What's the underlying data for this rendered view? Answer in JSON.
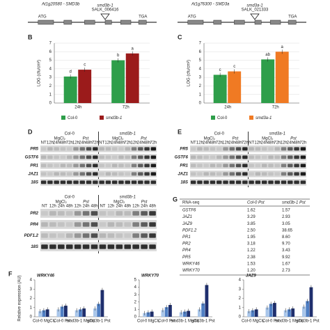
{
  "genes": [
    {
      "title": "At1g20580 - SMD3b",
      "start": "ATG",
      "stop": "TGA",
      "insertion": "smd3b-1",
      "line": "SALK_006416"
    },
    {
      "title": "At1g76300 - SMD3a",
      "start": "ATG",
      "stop": "TGA",
      "insertion": "smd3a-1",
      "line": "SALK_021333"
    }
  ],
  "chart_data": [
    {
      "type": "bar",
      "panel": "B",
      "ylabel": "LOG (cfu/cm²)",
      "categories": [
        "24h",
        "72h"
      ],
      "series": [
        {
          "name": "Col-0",
          "color": "#2e9e4a",
          "values": [
            3.1,
            5.0
          ],
          "annotations": [
            "d",
            "b"
          ]
        },
        {
          "name": "smd3b-1",
          "color": "#9b1b1b",
          "values": [
            3.9,
            5.8
          ],
          "annotations": [
            "c",
            "a"
          ]
        }
      ],
      "ylim": [
        0,
        7
      ],
      "yticks": [
        0,
        1,
        2,
        3,
        4,
        5,
        6,
        7
      ],
      "grid": true,
      "legend": "bottom"
    },
    {
      "type": "bar",
      "panel": "C",
      "ylabel": "LOG (cfu/cm²)",
      "categories": [
        "24h",
        "72h"
      ],
      "series": [
        {
          "name": "Col-0",
          "color": "#2e9e4a",
          "values": [
            3.3,
            5.1
          ],
          "annotations": [
            "c",
            "ab"
          ]
        },
        {
          "name": "smd3a-1",
          "color": "#f07a23",
          "values": [
            3.7,
            6.0
          ],
          "annotations": [
            "c",
            "a"
          ]
        }
      ],
      "ylim": [
        0,
        7
      ],
      "yticks": [
        0,
        1,
        2,
        3,
        4,
        5,
        6,
        7
      ],
      "grid": true,
      "legend": "bottom"
    },
    {
      "type": "bar",
      "panel": "F",
      "title": "WRKY46",
      "ylabel": "Relative expression (AU)",
      "categories": [
        "Col-0 MgCl₂",
        "Col-0 Pst",
        "smd3b-1 MgCl₂",
        "smd3b-1 Pst"
      ],
      "series": [
        {
          "color": "#a9c6ea",
          "values": [
            0.6,
            0.8,
            0.7,
            0.9
          ]
        },
        {
          "color": "#4f7fc4",
          "values": [
            0.7,
            1.1,
            0.8,
            1.4
          ]
        },
        {
          "color": "#1f2f6e",
          "values": [
            0.8,
            1.2,
            0.9,
            2.9
          ]
        }
      ],
      "ylim": [
        0,
        4
      ],
      "yticks": [
        0,
        1,
        2,
        3,
        4
      ],
      "grid": false
    },
    {
      "type": "bar",
      "title": "WRKY70",
      "categories": [
        "Col-0 MgCl₂",
        "Col-0 Pst",
        "smd3b-1 MgCl₂",
        "smd3b-1 Pst"
      ],
      "series": [
        {
          "color": "#a9c6ea",
          "values": [
            0.5,
            0.9,
            0.6,
            1.0
          ]
        },
        {
          "color": "#4f7fc4",
          "values": [
            0.6,
            1.3,
            0.7,
            1.8
          ]
        },
        {
          "color": "#1f2f6e",
          "values": [
            0.7,
            1.6,
            0.8,
            4.3
          ]
        }
      ],
      "ylim": [
        0,
        5
      ],
      "yticks": [
        0,
        1,
        2,
        3,
        4,
        5
      ],
      "grid": false
    },
    {
      "type": "bar",
      "title": "JAZ9",
      "categories": [
        "Col-0 MgCl₂",
        "Col-0 Pst",
        "smd3b-1 MgCl₂",
        "smd3b-1 Pst"
      ],
      "series": [
        {
          "color": "#a9c6ea",
          "values": [
            0.6,
            1.0,
            0.7,
            1.1
          ]
        },
        {
          "color": "#4f7fc4",
          "values": [
            0.7,
            1.4,
            0.8,
            1.7
          ]
        },
        {
          "color": "#1f2f6e",
          "values": [
            0.8,
            1.5,
            0.9,
            3.2
          ]
        }
      ],
      "ylim": [
        0,
        4
      ],
      "yticks": [
        0,
        1,
        2,
        3,
        4
      ],
      "grid": false
    }
  ],
  "blots": [
    {
      "panel": "D",
      "genotypes": [
        "Col-0",
        "smd3b-1"
      ],
      "treatments": [
        "MgCl₂",
        "Pst"
      ],
      "lanes": [
        "NT",
        "12h",
        "24h",
        "48h",
        "72h"
      ],
      "genes": [
        "PR5",
        "GSTF6",
        "PR1",
        "JAZ1",
        "18S"
      ]
    },
    {
      "genotypes": [
        "Col-0",
        "smd3b-1"
      ],
      "treatments": [
        "MgCl₂",
        "Pst"
      ],
      "lanes": [
        "NT",
        "12h",
        "24h",
        "48h"
      ],
      "genes": [
        "PR2",
        "PR4",
        "PDF1.2",
        "18S"
      ]
    },
    {
      "panel": "E",
      "genotypes": [
        "Col-0",
        "smd3a-1"
      ],
      "treatments": [
        "MgCl₂",
        "Pst"
      ],
      "lanes": [
        "NT",
        "12h",
        "24h",
        "48h",
        "72h"
      ],
      "genes": [
        "PR5",
        "GSTF6",
        "PR1",
        "JAZ1",
        "18S"
      ]
    }
  ],
  "table": {
    "panel": "G",
    "header": [
      "RNA-seq",
      "Col-0 Pst",
      "smd3b-1 Pst"
    ],
    "rows": [
      [
        "GSTF6",
        "1.62",
        "1.57"
      ],
      [
        "JAZ1",
        "3.29",
        "2.93"
      ],
      [
        "JAZ9",
        "3.85",
        "3.05"
      ],
      [
        "PDF1.2",
        "2.50",
        "38.65"
      ],
      [
        "PR1",
        "1.95",
        "8.60"
      ],
      [
        "PR2",
        "3.18",
        "9.70"
      ],
      [
        "PR4",
        "1.22",
        "3.43"
      ],
      [
        "PR5",
        "2.38",
        "9.92"
      ],
      [
        "WRKY46",
        "1.53",
        "1.67"
      ],
      [
        "WRKY70",
        "1.20",
        "2.73"
      ]
    ]
  }
}
